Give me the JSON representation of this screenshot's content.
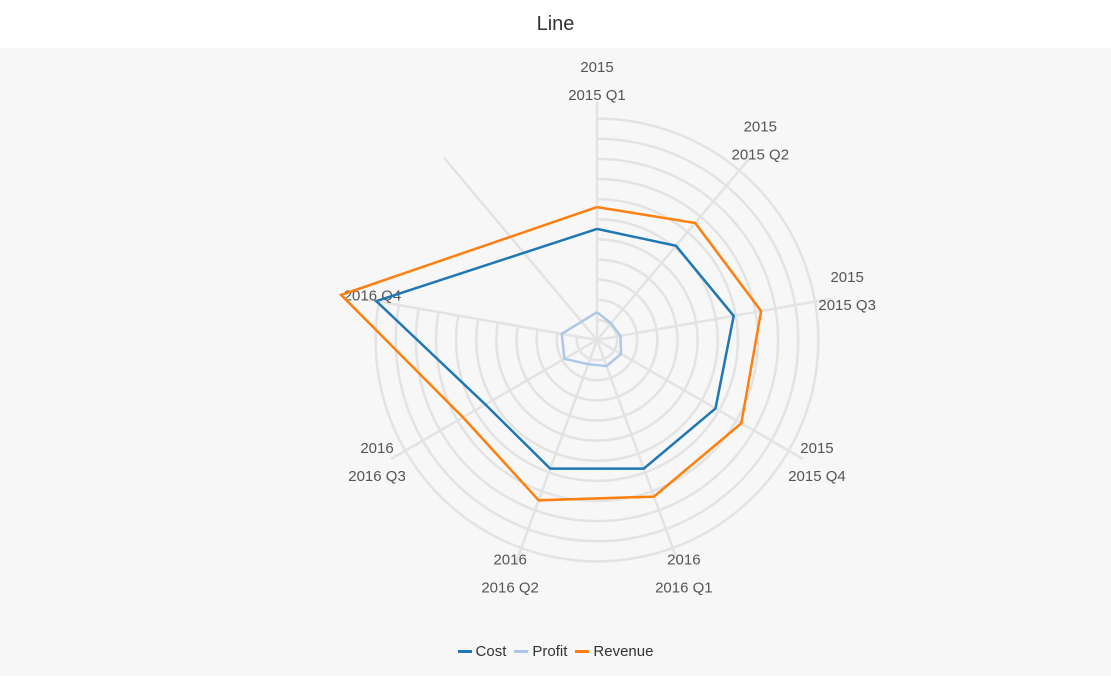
{
  "header": {
    "title": "Line"
  },
  "colors": {
    "background": "#f7f7f7",
    "grid": "#e3e3e3"
  },
  "chart_data": {
    "type": "radar-line",
    "title": "Line",
    "categories": [
      [
        "2015",
        "2015 Q1"
      ],
      [
        "2015",
        "2015 Q2"
      ],
      [
        "2015",
        "2015 Q3"
      ],
      [
        "2015",
        "2015 Q4"
      ],
      [
        "2016",
        "2016 Q1"
      ],
      [
        "2016",
        "2016 Q2"
      ],
      [
        "2016",
        "2016 Q3"
      ],
      [
        "2016 Q4"
      ]
    ],
    "rlim": [
      0,
      240
    ],
    "rings": 11,
    "grid": true,
    "legend_position": "bottom-center",
    "series": [
      {
        "name": "Cost",
        "color": "#1f77b4",
        "values": [
          112,
          124,
          140,
          138,
          138,
          138,
          130,
          226
        ]
      },
      {
        "name": "Profit",
        "color": "#aec7e8",
        "values": [
          28,
          22,
          24,
          28,
          28,
          26,
          38,
          36
        ]
      },
      {
        "name": "Revenue",
        "color": "#ff7f0e",
        "values": [
          134,
          154,
          168,
          168,
          168,
          172,
          156,
          262
        ]
      }
    ]
  }
}
